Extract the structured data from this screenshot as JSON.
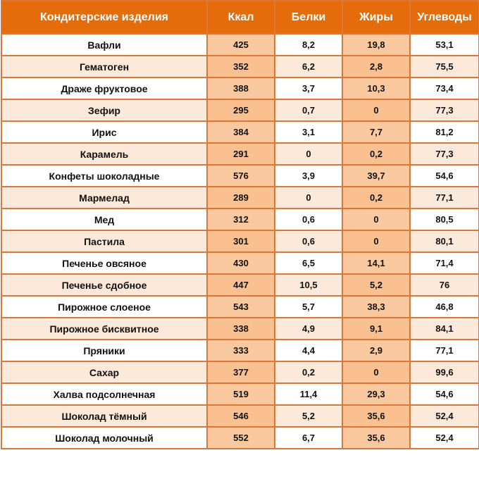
{
  "table": {
    "header": [
      "Кондитерские изделия",
      "Ккал",
      "Белки",
      "Жиры",
      "Углеводы"
    ],
    "rows": [
      [
        "Вафли",
        "425",
        "8,2",
        "19,8",
        "53,1"
      ],
      [
        "Гематоген",
        "352",
        "6,2",
        "2,8",
        "75,5"
      ],
      [
        "Драже фруктовое",
        "388",
        "3,7",
        "10,3",
        "73,4"
      ],
      [
        "Зефир",
        "295",
        "0,7",
        "0",
        "77,3"
      ],
      [
        "Ирис",
        "384",
        "3,1",
        "7,7",
        "81,2"
      ],
      [
        "Карамель",
        "291",
        "0",
        "0,2",
        "77,3"
      ],
      [
        "Конфеты шоколадные",
        "576",
        "3,9",
        "39,7",
        "54,6"
      ],
      [
        "Мармелад",
        "289",
        "0",
        "0,2",
        "77,1"
      ],
      [
        "Мед",
        "312",
        "0,6",
        "0",
        "80,5"
      ],
      [
        "Пастила",
        "301",
        "0,6",
        "0",
        "80,1"
      ],
      [
        "Печенье овсяное",
        "430",
        "6,5",
        "14,1",
        "71,4"
      ],
      [
        "Печенье сдобное",
        "447",
        "10,5",
        "5,2",
        "76"
      ],
      [
        "Пирожное слоеное",
        "543",
        "5,7",
        "38,3",
        "46,8"
      ],
      [
        "Пирожное бисквитное",
        "338",
        "4,9",
        "9,1",
        "84,1"
      ],
      [
        "Пряники",
        "333",
        "4,4",
        "2,9",
        "77,1"
      ],
      [
        "Сахар",
        "377",
        "0,2",
        "0",
        "99,6"
      ],
      [
        "Халва подсолнечная",
        "519",
        "11,4",
        "29,3",
        "54,6"
      ],
      [
        "Шоколад тёмный",
        "546",
        "5,2",
        "35,6",
        "52,4"
      ],
      [
        "Шоколад молочный",
        "552",
        "6,7",
        "35,6",
        "52,4"
      ]
    ]
  }
}
